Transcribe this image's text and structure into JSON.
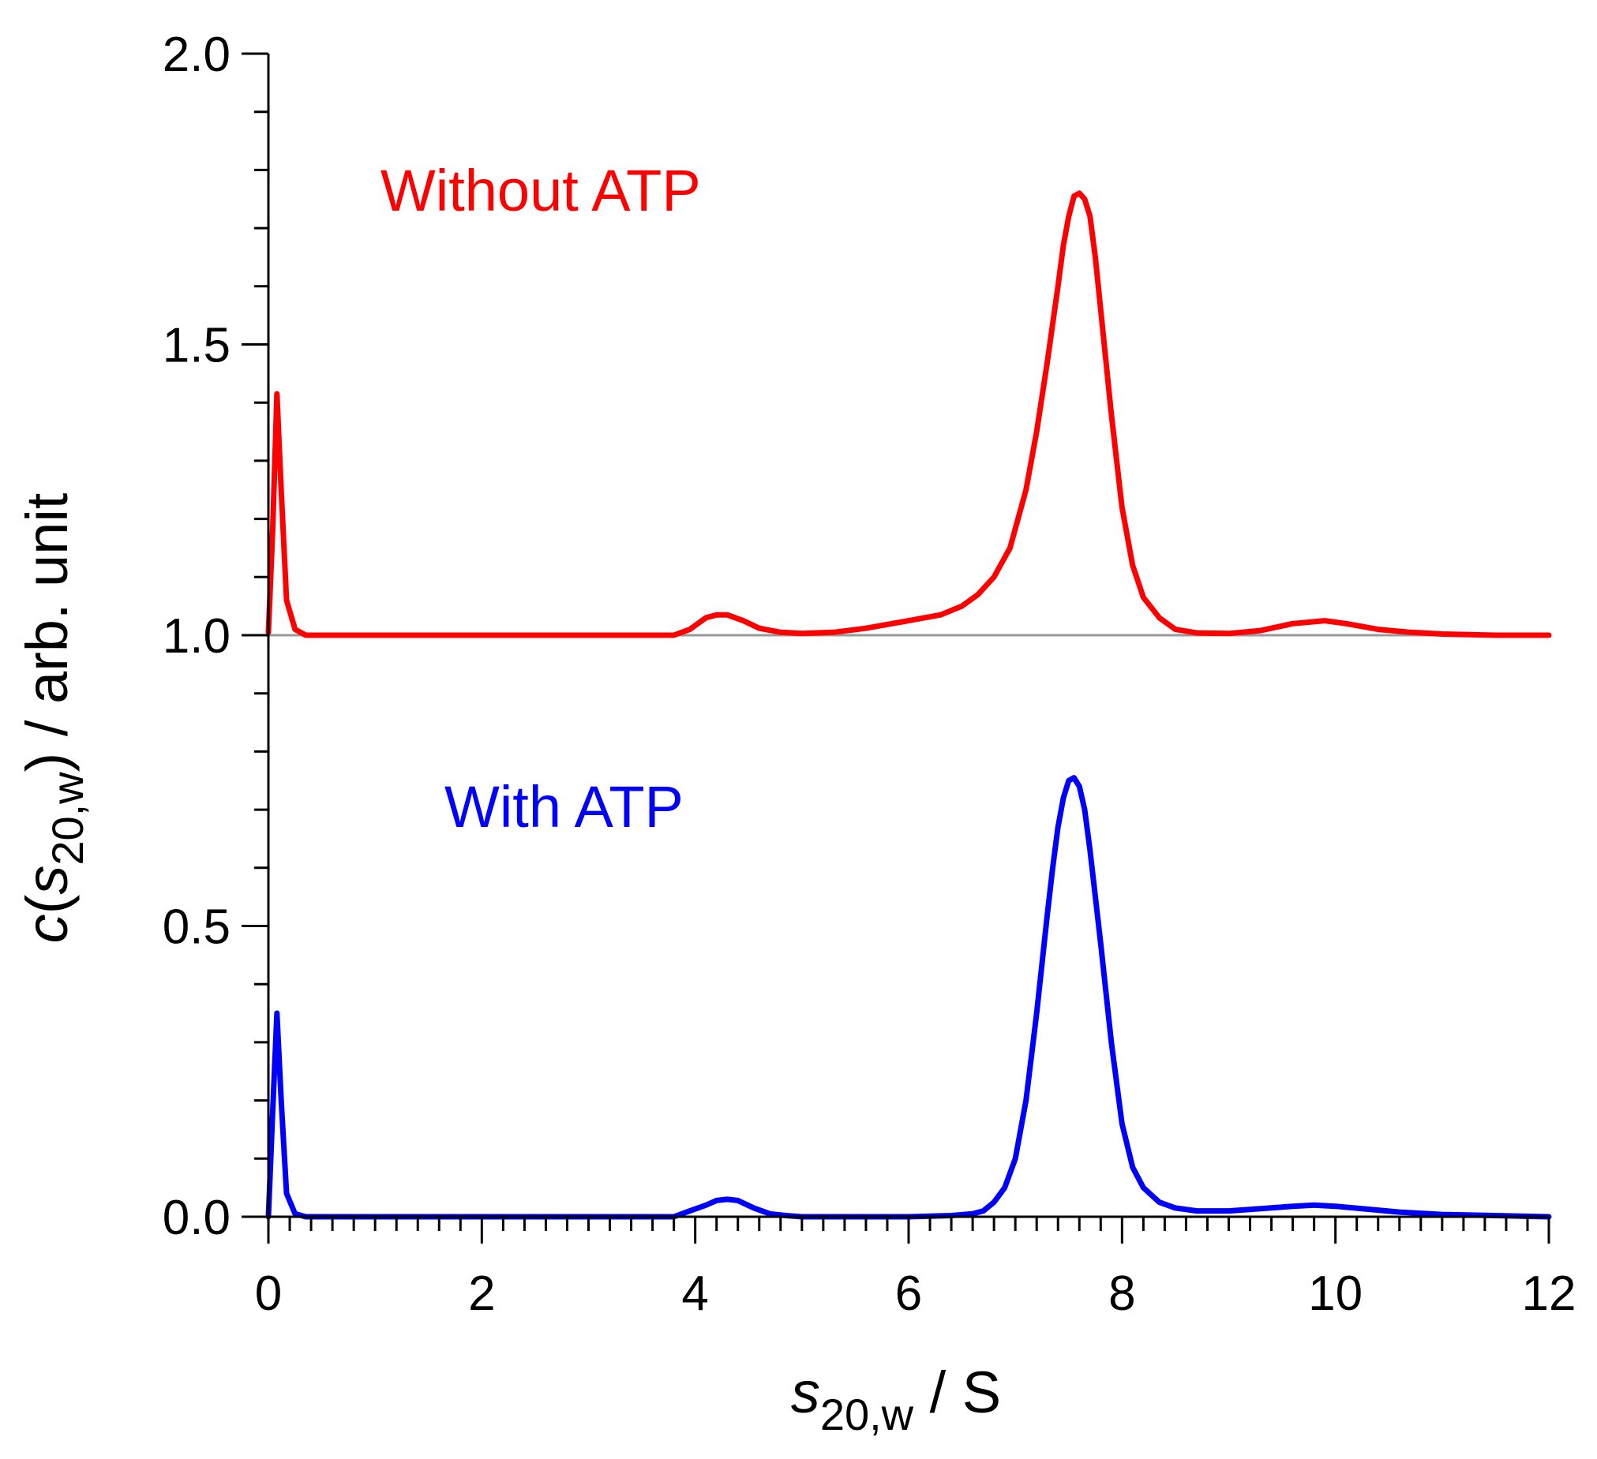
{
  "chart_data": {
    "type": "line",
    "xlabel_main": "s",
    "xlabel_sub": "20,w",
    "xlabel_unit": " / S",
    "ylabel_prefix": "c(",
    "ylabel_var": "s",
    "ylabel_sub": "20,w",
    "ylabel_suffix": ") / arb. unit",
    "xlim": [
      0,
      12
    ],
    "ylim": [
      0,
      2
    ],
    "x_ticks": [
      0,
      2,
      4,
      6,
      8,
      10,
      12
    ],
    "x_tick_labels": [
      "0",
      "2",
      "4",
      "6",
      "8",
      "10",
      "12"
    ],
    "y_ticks": [
      0,
      0.5,
      1.0,
      1.5,
      2.0
    ],
    "y_tick_labels": [
      "0.0",
      "0.5",
      "1.0",
      "1.5",
      "2.0"
    ],
    "baseline": 1.0,
    "baseline_color": "#999999",
    "series": [
      {
        "name": "Without ATP",
        "color": "#ff0000",
        "x": [
          0.0,
          0.04,
          0.08,
          0.12,
          0.17,
          0.25,
          0.35,
          0.5,
          1.0,
          2.0,
          3.0,
          3.8,
          3.95,
          4.1,
          4.2,
          4.3,
          4.45,
          4.6,
          4.8,
          5.0,
          5.3,
          5.6,
          6.0,
          6.3,
          6.5,
          6.65,
          6.8,
          6.95,
          7.1,
          7.2,
          7.3,
          7.4,
          7.45,
          7.5,
          7.55,
          7.6,
          7.65,
          7.7,
          7.75,
          7.8,
          7.9,
          8.0,
          8.1,
          8.2,
          8.35,
          8.5,
          8.7,
          9.0,
          9.3,
          9.6,
          9.9,
          10.1,
          10.4,
          10.7,
          11.0,
          11.5,
          12.0
        ],
        "y": [
          1.005,
          1.18,
          1.415,
          1.25,
          1.06,
          1.01,
          1.0,
          1.0,
          1.0,
          1.0,
          1.0,
          1.0,
          1.01,
          1.03,
          1.035,
          1.035,
          1.025,
          1.012,
          1.005,
          1.003,
          1.005,
          1.012,
          1.025,
          1.035,
          1.05,
          1.07,
          1.1,
          1.15,
          1.25,
          1.35,
          1.47,
          1.6,
          1.67,
          1.72,
          1.755,
          1.76,
          1.75,
          1.72,
          1.65,
          1.56,
          1.38,
          1.22,
          1.12,
          1.065,
          1.03,
          1.01,
          1.004,
          1.003,
          1.008,
          1.02,
          1.025,
          1.02,
          1.01,
          1.005,
          1.002,
          1.0,
          1.0
        ]
      },
      {
        "name": "With ATP",
        "color": "#0000ff",
        "x": [
          0.0,
          0.04,
          0.08,
          0.12,
          0.17,
          0.25,
          0.35,
          0.5,
          1.0,
          2.0,
          3.0,
          3.8,
          3.95,
          4.1,
          4.2,
          4.3,
          4.4,
          4.55,
          4.7,
          4.85,
          5.0,
          5.5,
          6.0,
          6.4,
          6.6,
          6.7,
          6.8,
          6.9,
          7.0,
          7.1,
          7.2,
          7.3,
          7.35,
          7.4,
          7.45,
          7.5,
          7.55,
          7.6,
          7.65,
          7.7,
          7.8,
          7.9,
          8.0,
          8.1,
          8.2,
          8.35,
          8.5,
          8.7,
          9.0,
          9.3,
          9.6,
          9.8,
          10.0,
          10.3,
          10.6,
          11.0,
          11.5,
          12.0
        ],
        "y": [
          0.0,
          0.18,
          0.35,
          0.2,
          0.04,
          0.005,
          0.0,
          0.0,
          0.0,
          0.0,
          0.0,
          0.0,
          0.01,
          0.02,
          0.028,
          0.03,
          0.028,
          0.015,
          0.005,
          0.002,
          0.0,
          0.0,
          0.0,
          0.002,
          0.005,
          0.01,
          0.025,
          0.05,
          0.1,
          0.2,
          0.35,
          0.52,
          0.6,
          0.67,
          0.72,
          0.75,
          0.755,
          0.74,
          0.7,
          0.63,
          0.47,
          0.3,
          0.16,
          0.085,
          0.05,
          0.025,
          0.015,
          0.01,
          0.01,
          0.014,
          0.018,
          0.02,
          0.018,
          0.013,
          0.008,
          0.004,
          0.002,
          0.0
        ]
      }
    ],
    "annotations": [
      {
        "text": "Without ATP",
        "x": 1.05,
        "y": 1.73,
        "color": "#ff0000"
      },
      {
        "text": "With ATP",
        "x": 1.65,
        "y": 0.67,
        "color": "#0000ff"
      }
    ]
  }
}
